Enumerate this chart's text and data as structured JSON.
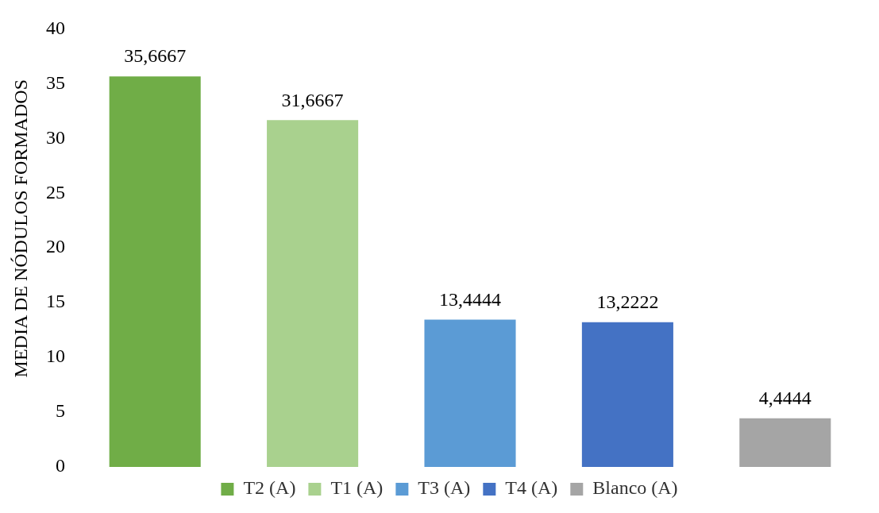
{
  "chart_data": {
    "type": "bar",
    "ylabel": "MEDIA DE NÓDULOS FORMADOS",
    "categories": [
      null,
      null,
      null,
      null,
      null
    ],
    "series": [
      {
        "name": "T2 (A)",
        "color": "#70ad47",
        "values": [
          35.6667,
          null,
          null,
          null,
          null
        ],
        "value_labels": [
          "35,6667",
          null,
          null,
          null,
          null
        ]
      },
      {
        "name": "T1 (A)",
        "color": "#a9d18e",
        "values": [
          null,
          31.6667,
          null,
          null,
          null
        ],
        "value_labels": [
          null,
          "31,6667",
          null,
          null,
          null
        ]
      },
      {
        "name": "T3 (A)",
        "color": "#5b9bd5",
        "values": [
          null,
          null,
          13.4444,
          null,
          null
        ],
        "value_labels": [
          null,
          null,
          "13,4444",
          null,
          null
        ]
      },
      {
        "name": "T4 (A)",
        "color": "#4472c4",
        "values": [
          null,
          null,
          null,
          13.2222,
          null
        ],
        "value_labels": [
          null,
          null,
          null,
          "13,2222",
          null
        ]
      },
      {
        "name": "Blanco (A)",
        "color": "#a5a5a5",
        "values": [
          null,
          null,
          null,
          null,
          4.4444
        ],
        "value_labels": [
          null,
          null,
          null,
          null,
          "4,4444"
        ]
      }
    ],
    "ylim": [
      0,
      40
    ],
    "yticks": [
      0,
      5,
      10,
      15,
      20,
      25,
      30,
      35,
      40
    ],
    "grid": false,
    "stacked": true,
    "legend": "bottom",
    "tick_labels": "y"
  }
}
